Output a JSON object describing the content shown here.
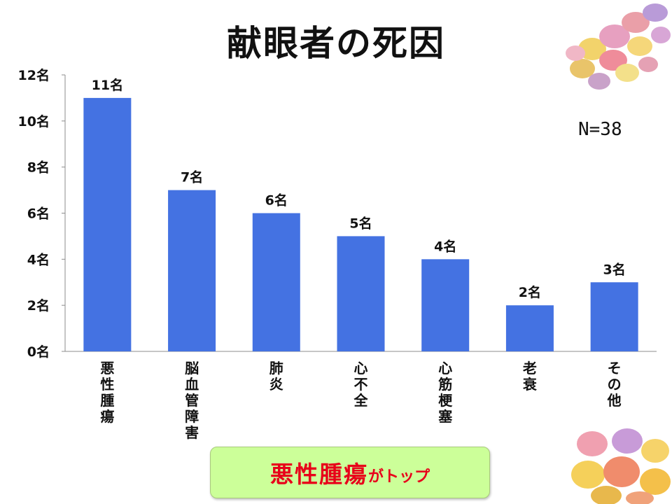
{
  "slide": {
    "title": "献眼者の死因",
    "sample_size": "N=38",
    "callout": {
      "emphasis": "悪性腫瘍",
      "suffix": "がトップ",
      "text_color": "#e8001a",
      "background_color": "#ccff99"
    }
  },
  "decorations": [
    {
      "icon": "candy-eggs-top-right"
    },
    {
      "icon": "candy-eggs-bottom-right"
    }
  ],
  "chart_data": {
    "type": "bar",
    "categories": [
      "悪性腫瘍",
      "脳血管障害",
      "肺炎",
      "心不全",
      "心筋梗塞",
      "老衰",
      "その他"
    ],
    "values": [
      11,
      7,
      6,
      5,
      4,
      2,
      3
    ],
    "data_labels": [
      "11名",
      "7名",
      "6名",
      "5名",
      "4名",
      "2名",
      "3名"
    ],
    "y_tick_labels": [
      "0名",
      "2名",
      "4名",
      "6名",
      "8名",
      "10名",
      "12名"
    ],
    "y_ticks": [
      0,
      2,
      4,
      6,
      8,
      10,
      12
    ],
    "ylim": [
      0,
      12
    ],
    "bar_color": "#4472e2",
    "grid": false,
    "legend": "none",
    "x_label_orientation": "vertical"
  }
}
